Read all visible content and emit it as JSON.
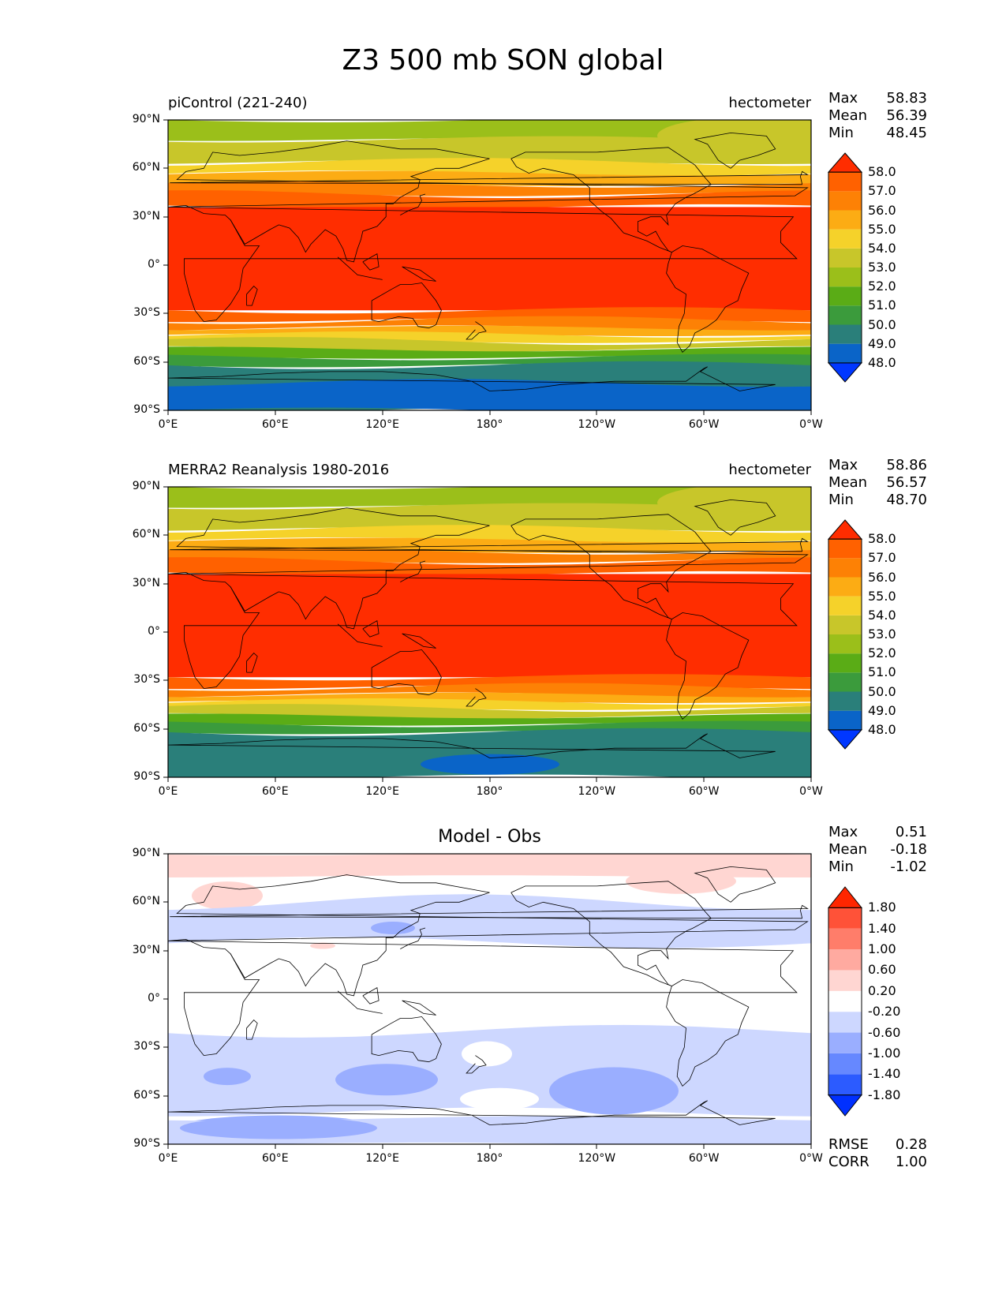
{
  "title": "Z3 500 mb SON global",
  "x_ticks": [
    "0°E",
    "60°E",
    "120°E",
    "180°",
    "120°W",
    "60°W",
    "0°W"
  ],
  "y_ticks": [
    "90°N",
    "60°N",
    "30°N",
    "0°",
    "30°S",
    "60°S",
    "90°S"
  ],
  "panels": [
    {
      "left_title": "piControl (221-240)",
      "center_title": "",
      "right_title": "hectometer",
      "stats": [
        {
          "label": "Max",
          "value": "58.83"
        },
        {
          "label": "Mean",
          "value": "56.39"
        },
        {
          "label": "Min",
          "value": "48.45"
        }
      ],
      "colorbar": {
        "labels": [
          "58.0",
          "57.0",
          "56.0",
          "55.0",
          "54.0",
          "53.0",
          "52.0",
          "51.0",
          "50.0",
          "49.0",
          "48.0"
        ],
        "colors": [
          "#0037ff",
          "#0a64c8",
          "#2a7f7a",
          "#3b9b3c",
          "#5aac16",
          "#9bbf1a",
          "#c8c62a",
          "#f5d22a",
          "#fcac14",
          "#fd8105",
          "#ff6100",
          "#ff2d00"
        ]
      },
      "footer_stats": []
    },
    {
      "left_title": "MERRA2 Reanalysis 1980-2016",
      "center_title": "",
      "right_title": "hectometer",
      "stats": [
        {
          "label": "Max",
          "value": "58.86"
        },
        {
          "label": "Mean",
          "value": "56.57"
        },
        {
          "label": "Min",
          "value": "48.70"
        }
      ],
      "colorbar": {
        "labels": [
          "58.0",
          "57.0",
          "56.0",
          "55.0",
          "54.0",
          "53.0",
          "52.0",
          "51.0",
          "50.0",
          "49.0",
          "48.0"
        ],
        "colors": [
          "#0037ff",
          "#0a64c8",
          "#2a7f7a",
          "#3b9b3c",
          "#5aac16",
          "#9bbf1a",
          "#c8c62a",
          "#f5d22a",
          "#fcac14",
          "#fd8105",
          "#ff6100",
          "#ff2d00"
        ]
      },
      "footer_stats": []
    },
    {
      "left_title": "",
      "center_title": "Model - Obs",
      "right_title": "",
      "stats": [
        {
          "label": "Max",
          "value": "0.51"
        },
        {
          "label": "Mean",
          "value": "-0.18"
        },
        {
          "label": "Min",
          "value": "-1.02"
        }
      ],
      "colorbar": {
        "labels": [
          "1.80",
          "1.40",
          "1.00",
          "0.60",
          "0.20",
          "-0.20",
          "-0.60",
          "-1.00",
          "-1.40",
          "-1.80"
        ],
        "colors": [
          "#0030ff",
          "#2c5bff",
          "#6688ff",
          "#9aaeff",
          "#cdd7ff",
          "#ffffff",
          "#ffd6d2",
          "#ffaaa0",
          "#ff7d6a",
          "#ff5238",
          "#ff2600"
        ]
      },
      "footer_stats": [
        {
          "label": "RMSE",
          "value": "0.28"
        },
        {
          "label": "CORR",
          "value": "1.00"
        }
      ]
    }
  ]
}
